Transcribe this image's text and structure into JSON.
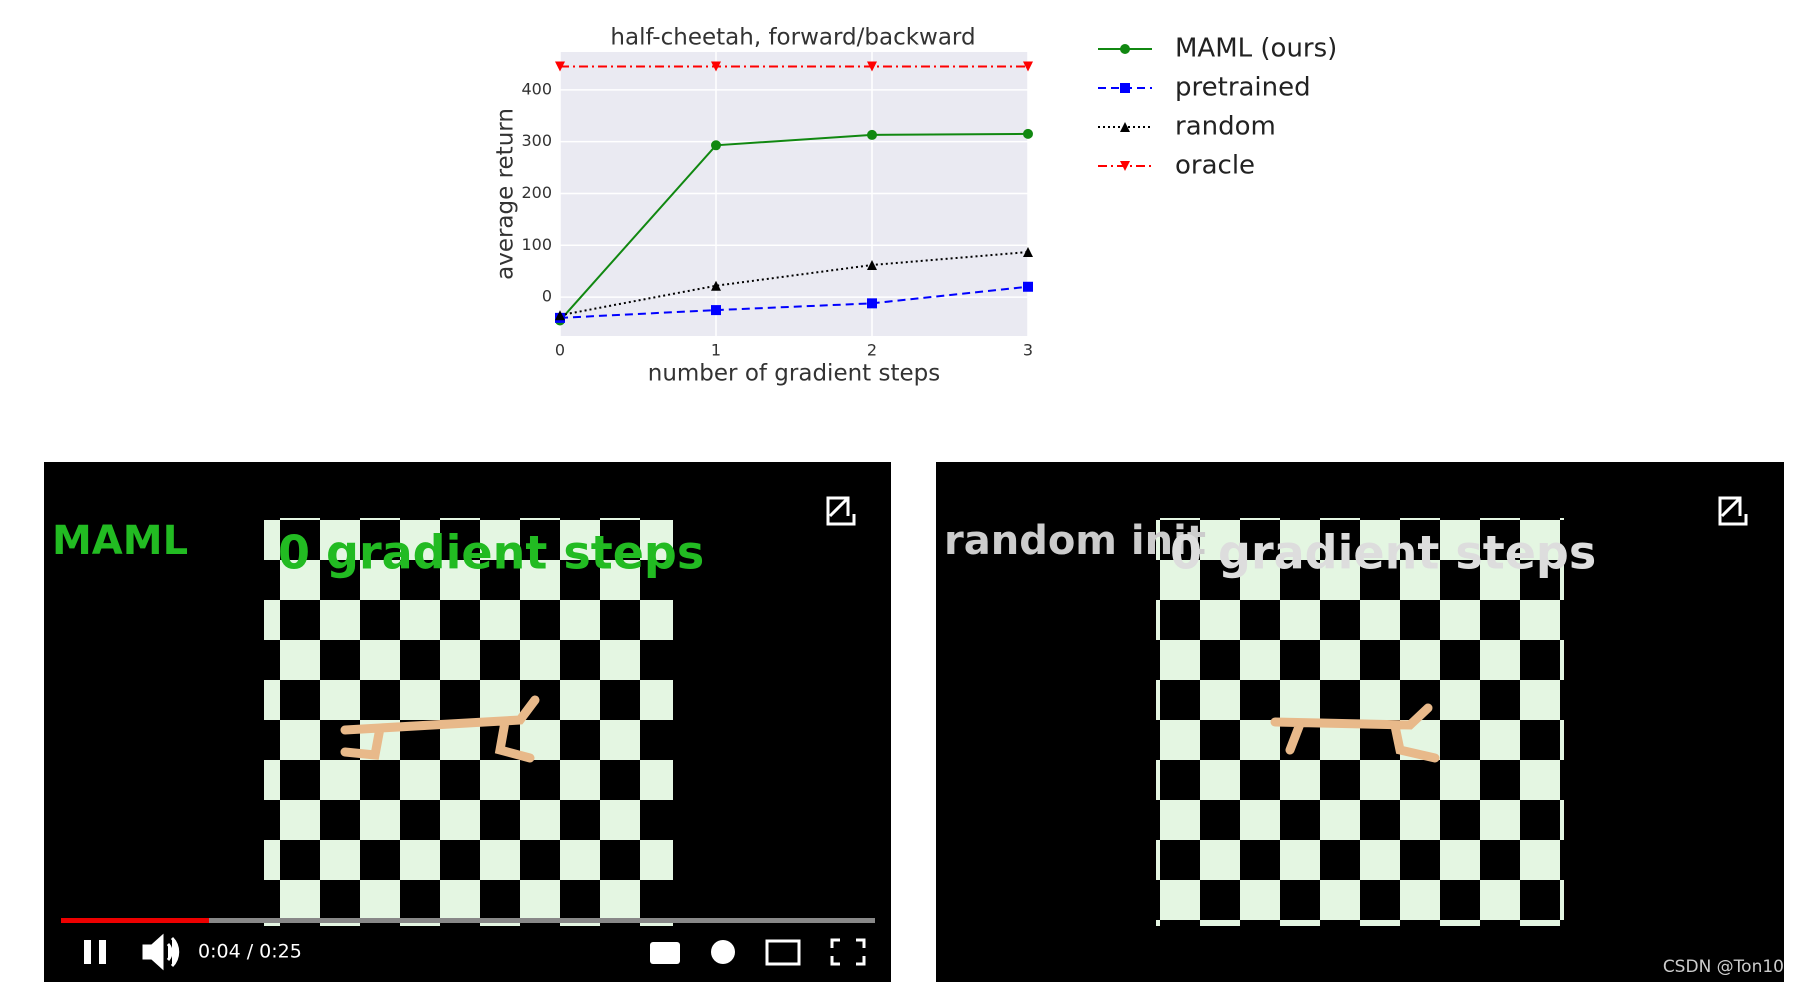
{
  "chart_data": {
    "type": "line",
    "title": "half-cheetah, forward/backward",
    "x_label": "number of gradient steps",
    "y_label": "average return",
    "x": [
      0,
      1,
      2,
      3
    ],
    "xlim": [
      0,
      3
    ],
    "xticks": [
      0,
      1,
      2,
      3
    ],
    "ylim": [
      -75,
      473
    ],
    "yticks": [
      0,
      100,
      200,
      300,
      400
    ],
    "grid": true,
    "series": [
      {
        "name": "MAML (ours)",
        "color": "#118811",
        "values": [
          -45,
          293,
          313,
          315
        ],
        "line_style": "solid",
        "marker": "circle"
      },
      {
        "name": "pretrained",
        "color": "#0000ff",
        "values": [
          -40,
          -25,
          -12,
          20
        ],
        "line_style": "dashed",
        "marker": "square"
      },
      {
        "name": "random",
        "color": "#000000",
        "values": [
          -35,
          22,
          62,
          87
        ],
        "line_style": "dotted",
        "marker": "triangle-up"
      },
      {
        "name": "oracle",
        "color": "#ff0000",
        "values": [
          445,
          445,
          445,
          445
        ],
        "line_style": "dashdot",
        "marker": "triangle-down"
      }
    ]
  },
  "videos": [
    {
      "label": "MAML",
      "caption": "0 gradient steps",
      "time": "0:04 / 0:25"
    },
    {
      "label": "random init",
      "caption": "0 gradient steps"
    }
  ],
  "watermark": "CSDN @Ton10"
}
